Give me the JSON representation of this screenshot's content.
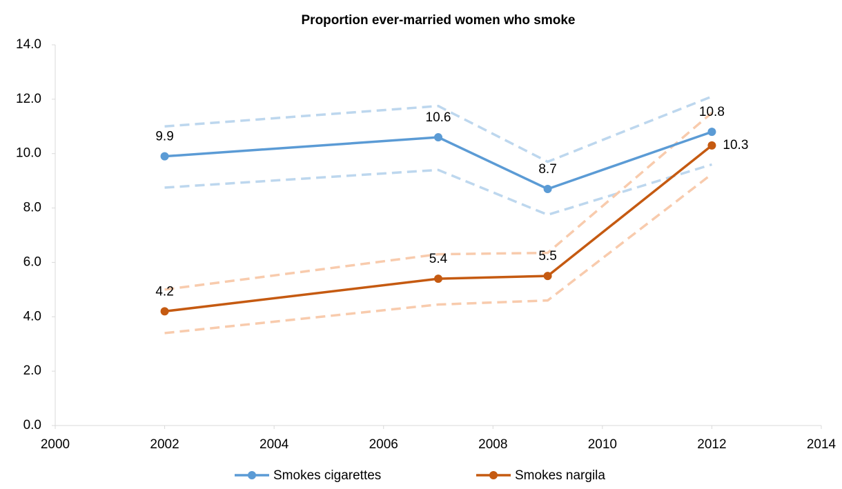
{
  "chart_data": {
    "type": "line",
    "title": "Proportion ever-married women who smoke",
    "x": [
      2002,
      2007,
      2009,
      2012
    ],
    "series": [
      {
        "name": "Smokes cigarettes",
        "color": "#5b9bd5",
        "ci_color": "#bdd7ee",
        "values": [
          9.9,
          10.6,
          8.7,
          10.8
        ],
        "ci_upper": [
          11.0,
          11.75,
          9.7,
          12.1
        ],
        "ci_lower": [
          8.75,
          9.4,
          7.75,
          9.6
        ]
      },
      {
        "name": "Smokes nargila",
        "color": "#c55a11",
        "ci_color": "#f8cbad",
        "values": [
          4.2,
          5.4,
          5.5,
          10.3
        ],
        "ci_upper": [
          5.0,
          6.3,
          6.35,
          11.5
        ],
        "ci_lower": [
          3.4,
          4.45,
          4.6,
          9.25
        ]
      }
    ],
    "xlim": [
      2000,
      2014
    ],
    "xticks": [
      2000,
      2002,
      2004,
      2006,
      2008,
      2010,
      2012,
      2014
    ],
    "ylim": [
      0,
      14
    ],
    "yticks": [
      {
        "value": 0,
        "label": "0.0"
      },
      {
        "value": 2,
        "label": "2.0"
      },
      {
        "value": 4,
        "label": "4.0"
      },
      {
        "value": 6,
        "label": "6.0"
      },
      {
        "value": 8,
        "label": "8.0"
      },
      {
        "value": 10,
        "label": "10.0"
      },
      {
        "value": 12,
        "label": "12.0"
      },
      {
        "value": 14,
        "label": "14.0"
      }
    ],
    "legend": "bottom"
  }
}
